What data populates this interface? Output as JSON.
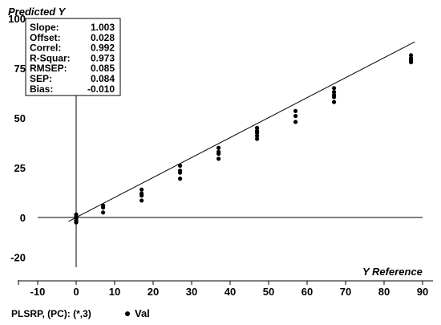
{
  "chart_data": {
    "type": "scatter",
    "title": "",
    "xlabel": "Y Reference",
    "ylabel": "Predicted Y",
    "xlim": [
      -15,
      95
    ],
    "ylim": [
      -20,
      100
    ],
    "xticks": [
      -10,
      0,
      10,
      20,
      30,
      40,
      50,
      60,
      70,
      80,
      90
    ],
    "yticks": [
      -20,
      0,
      25,
      50,
      75,
      100
    ],
    "grid": false,
    "reference_lines": {
      "x": 0,
      "y": 0
    },
    "regression": {
      "slope": 1.003,
      "offset": 0.028,
      "x_range": [
        -2,
        88
      ]
    },
    "statistics": [
      {
        "label": "Slope:",
        "value": "1.003"
      },
      {
        "label": "Offset:",
        "value": "0.028"
      },
      {
        "label": "Correl:",
        "value": "0.992"
      },
      {
        "label": "R-Squar:",
        "value": "0.973"
      },
      {
        "label": "RMSEP:",
        "value": "0.085"
      },
      {
        "label": "SEP:",
        "value": "0.084"
      },
      {
        "label": "Bias:",
        "value": "-0.010"
      }
    ],
    "series": [
      {
        "name": "Val",
        "points": [
          [
            0,
            1.5
          ],
          [
            0,
            0.5
          ],
          [
            0,
            -0.5
          ],
          [
            0,
            -1.5
          ],
          [
            0,
            -2.5
          ],
          [
            7,
            6
          ],
          [
            7,
            5
          ],
          [
            7,
            2.5
          ],
          [
            17,
            14
          ],
          [
            17,
            12
          ],
          [
            17,
            11
          ],
          [
            17,
            8.5
          ],
          [
            27,
            26
          ],
          [
            27,
            23.5
          ],
          [
            27,
            22.5
          ],
          [
            27,
            19.5
          ],
          [
            37,
            35
          ],
          [
            37,
            33
          ],
          [
            37,
            32
          ],
          [
            37,
            29.5
          ],
          [
            47,
            45
          ],
          [
            47,
            43.5
          ],
          [
            47,
            42.5
          ],
          [
            47,
            41
          ],
          [
            47,
            39.5
          ],
          [
            57,
            53.5
          ],
          [
            57,
            51
          ],
          [
            57,
            48
          ],
          [
            67,
            65
          ],
          [
            67,
            63
          ],
          [
            67,
            61.5
          ],
          [
            67,
            60.5
          ],
          [
            67,
            58
          ],
          [
            87,
            81.5
          ],
          [
            87,
            80
          ],
          [
            87,
            79
          ],
          [
            87,
            78
          ]
        ]
      }
    ]
  },
  "footer": {
    "model_label": "PLSRP, (PC): (*,3)",
    "legend_label": "Val",
    "legend_color": "#000000"
  }
}
